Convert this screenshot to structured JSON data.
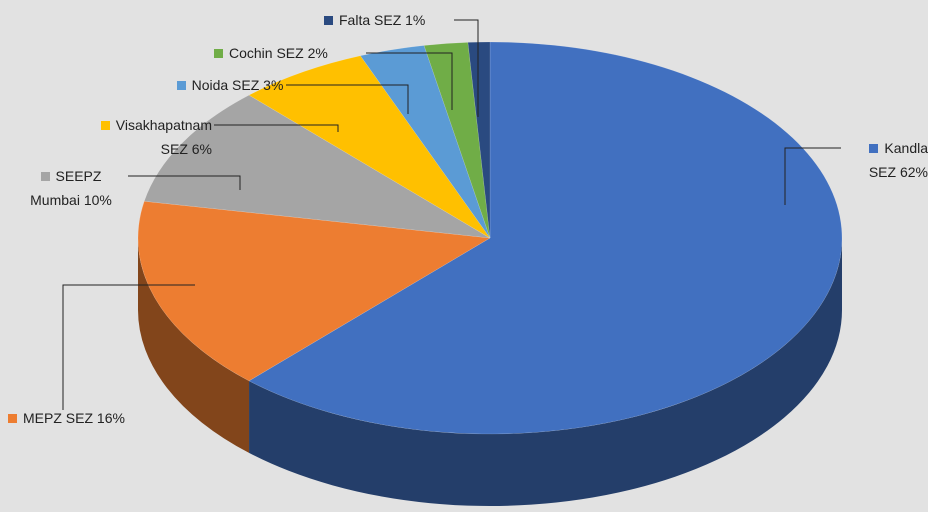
{
  "chart_data": {
    "type": "pie",
    "categories": [
      "Kandla SEZ",
      "MEPZ SEZ",
      "SEEPZ Mumbai",
      "Visakhapatnam SEZ",
      "Noida SEZ",
      "Cochin SEZ",
      "Falta SEZ"
    ],
    "values": [
      62,
      16,
      10,
      6,
      3,
      2,
      1
    ],
    "value_labels": [
      "62%",
      "16%",
      "10%",
      "6%",
      "3%",
      "2%",
      "1%"
    ],
    "colors": [
      "#4170c0",
      "#ed7d31",
      "#a5a5a5",
      "#ffc000",
      "#5b9bd5",
      "#70ad47",
      "#2a4a80"
    ]
  }
}
